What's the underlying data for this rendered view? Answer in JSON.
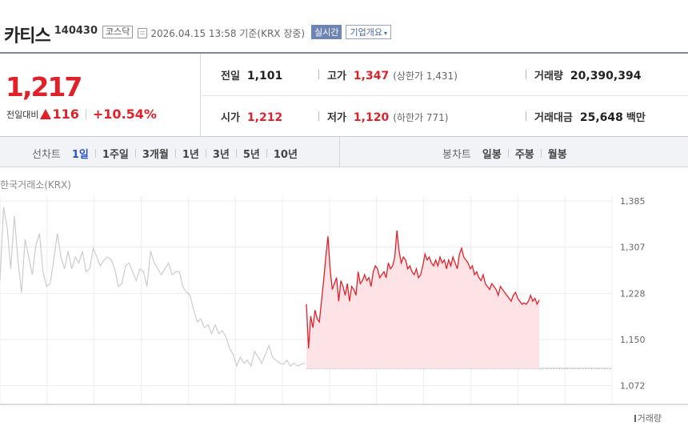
{
  "stock": {
    "name": "카티스",
    "code": "140430",
    "market": "코스닥",
    "timestamp": "2026.04.15 13:58  기준(KRX 장중)",
    "realtime_label": "실시간",
    "company_label": "기업개요"
  },
  "price": {
    "current": "1,217",
    "change_label": "전일대비",
    "change": "116",
    "change_pct": "+10.54%"
  },
  "summary": {
    "prev_close": {
      "label": "전일",
      "value": "1,101"
    },
    "high": {
      "label": "고가",
      "value": "1,347",
      "limit": "(상한가 1,431)"
    },
    "volume": {
      "label": "거래량",
      "value": "20,390,394"
    },
    "open": {
      "label": "시가",
      "value": "1,212"
    },
    "low": {
      "label": "저가",
      "value": "1,120",
      "limit": "(하한가 771)"
    },
    "turnover": {
      "label": "거래대금",
      "value": "25,648",
      "unit": "백만"
    }
  },
  "line_tabs": {
    "label": "선차트",
    "items": [
      "1일",
      "1주일",
      "3개월",
      "1년",
      "3년",
      "5년",
      "10년"
    ],
    "active": "1일"
  },
  "candle_tabs": {
    "label": "봉차트",
    "items": [
      "일봉",
      "주봉",
      "월봉"
    ]
  },
  "exchange_label": "한국거래소(KRX)",
  "volume_label": "거래량",
  "colors": {
    "up": "#e0212a",
    "fill": "#fde3e6",
    "prev_line": "#cccccc",
    "accent": "#2957c4"
  },
  "chart_data": {
    "type": "line",
    "ylim": [
      1040,
      1400
    ],
    "y_ticks": [
      "1,385",
      "1,307",
      "1,228",
      "1,150",
      "1,072"
    ],
    "y_tick_values": [
      1385,
      1307,
      1228,
      1150,
      1072
    ],
    "baseline": 1101,
    "series": [
      {
        "values": [
          1250,
          1375,
          1340,
          1270,
          1360,
          1285,
          1230,
          1320,
          1290,
          1260,
          1310,
          1330,
          1265,
          1240,
          1245,
          1285,
          1330,
          1290,
          1270,
          1300,
          1270,
          1290,
          1280,
          1300,
          1265,
          1270,
          1305,
          1290,
          1275,
          1285,
          1290,
          1285,
          1270,
          1240,
          1245,
          1275,
          1280,
          1265,
          1250,
          1270,
          1265,
          1240,
          1300,
          1280,
          1270,
          1260,
          1270,
          1280,
          1260,
          1265,
          1265,
          1240,
          1230,
          1225,
          1200,
          1180,
          1185,
          1170,
          1175,
          1160,
          1175,
          1160,
          1165,
          1155,
          1135,
          1125,
          1105,
          1120,
          1110,
          1115,
          1105,
          1130,
          1120,
          1110,
          1125,
          1140,
          1120,
          1115,
          1110,
          1108,
          1115,
          1105,
          1110,
          1105,
          1108,
          1110
        ]
      },
      {
        "values": [
          1210,
          1135,
          1190,
          1170,
          1200,
          1185,
          1180,
          1215,
          1250,
          1290,
          1325,
          1270,
          1235,
          1245,
          1255,
          1215,
          1250,
          1240,
          1225,
          1245,
          1215,
          1240,
          1235,
          1225,
          1265,
          1245,
          1250,
          1260,
          1250,
          1255,
          1240,
          1265,
          1275,
          1270,
          1255,
          1260,
          1265,
          1255,
          1280,
          1270,
          1275,
          1290,
          1335,
          1300,
          1280,
          1290,
          1285,
          1270,
          1275,
          1265,
          1260,
          1270,
          1255,
          1260,
          1275,
          1295,
          1285,
          1290,
          1280,
          1275,
          1285,
          1275,
          1290,
          1280,
          1285,
          1270,
          1285,
          1275,
          1290,
          1280,
          1270,
          1295,
          1305,
          1290,
          1285,
          1280,
          1270,
          1275,
          1260,
          1265,
          1255,
          1250,
          1260,
          1245,
          1240,
          1235,
          1245,
          1240,
          1235,
          1225,
          1240,
          1235,
          1230,
          1225,
          1220,
          1215,
          1225,
          1230,
          1220,
          1215,
          1210,
          1212,
          1210,
          1215,
          1225,
          1215,
          1220,
          1210,
          1217
        ]
      }
    ]
  }
}
